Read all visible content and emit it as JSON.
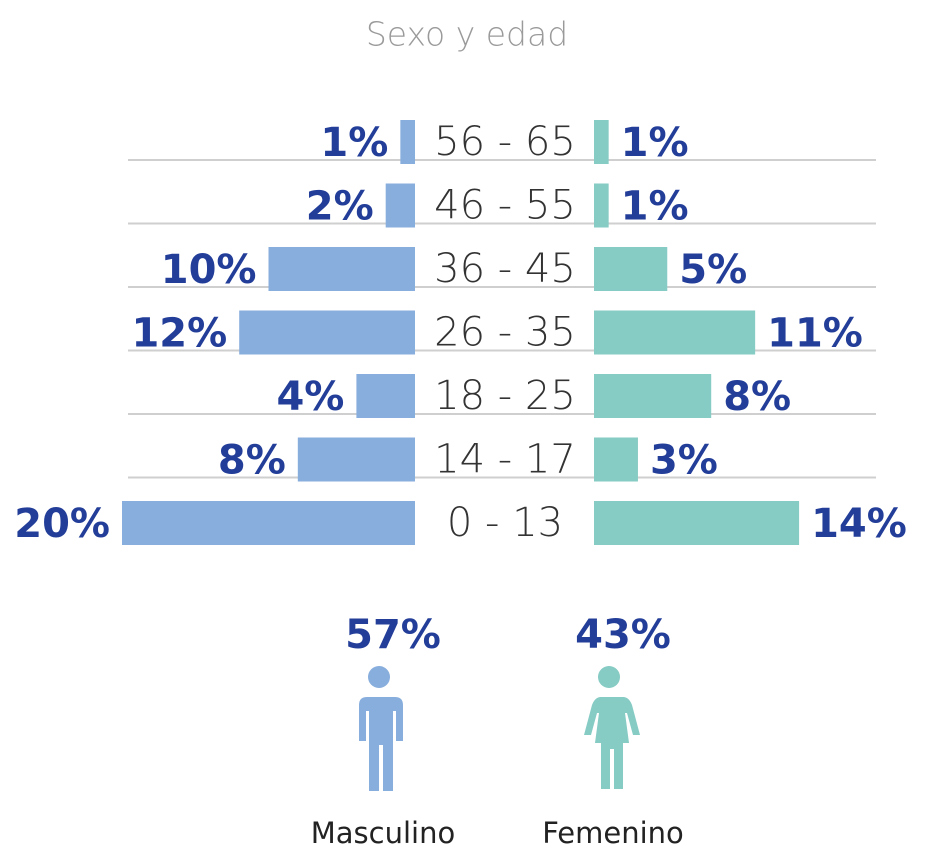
{
  "chart_data": {
    "type": "pyramid",
    "title": "Sexo y edad",
    "categories": [
      "56 - 65",
      "46 - 55",
      "36 - 45",
      "26 - 35",
      "18 - 25",
      "14 - 17",
      "0 - 13"
    ],
    "series": [
      {
        "name": "Masculino",
        "color": "#88aedd",
        "values": [
          1,
          2,
          10,
          12,
          4,
          8,
          20
        ],
        "value_labels": [
          "1%",
          "2%",
          "10%",
          "12%",
          "4%",
          "8%",
          "20%"
        ],
        "total": 57,
        "total_label": "57%"
      },
      {
        "name": "Femenino",
        "color": "#86cbc4",
        "values": [
          1,
          1,
          5,
          11,
          8,
          3,
          14
        ],
        "value_labels": [
          "1%",
          "1%",
          "5%",
          "11%",
          "8%",
          "3%",
          "14%"
        ],
        "total": 43,
        "total_label": "43%"
      }
    ],
    "grid": true
  }
}
